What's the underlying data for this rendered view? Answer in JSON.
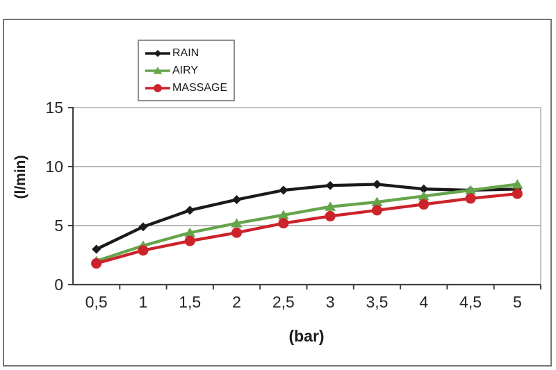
{
  "chart_data": {
    "type": "line",
    "title": "",
    "xlabel": "(bar)",
    "ylabel": "(l/min)",
    "categories": [
      "0,5",
      "1",
      "1,5",
      "2",
      "2,5",
      "3",
      "3,5",
      "4",
      "4,5",
      "5"
    ],
    "x_numeric": [
      0.5,
      1,
      1.5,
      2,
      2.5,
      3,
      3.5,
      4,
      4.5,
      5
    ],
    "y_ticks": [
      0,
      5,
      10,
      15
    ],
    "ylim": [
      0,
      15
    ],
    "grid": "horizontal-only",
    "legend_position": "top-center",
    "series": [
      {
        "name": "RAIN",
        "marker": "diamond",
        "color": "#1a1a1a",
        "values": [
          3.0,
          4.9,
          6.3,
          7.2,
          8.0,
          8.4,
          8.5,
          8.1,
          8.0,
          8.1
        ]
      },
      {
        "name": "AIRY",
        "marker": "triangle",
        "color": "#66a44c",
        "values": [
          2.0,
          3.3,
          4.4,
          5.2,
          5.9,
          6.6,
          7.0,
          7.5,
          8.0,
          8.5
        ]
      },
      {
        "name": "MASSAGE",
        "marker": "circle",
        "color": "#cc2229",
        "values": [
          1.8,
          2.9,
          3.7,
          4.4,
          5.2,
          5.8,
          6.3,
          6.8,
          7.3,
          7.7
        ]
      }
    ],
    "colors": {
      "gridline": "#8f8f8f",
      "axis": "#404040",
      "plot_border": "#9c9c9c",
      "frame_border": "#757575",
      "tick_text": "#262626"
    }
  }
}
